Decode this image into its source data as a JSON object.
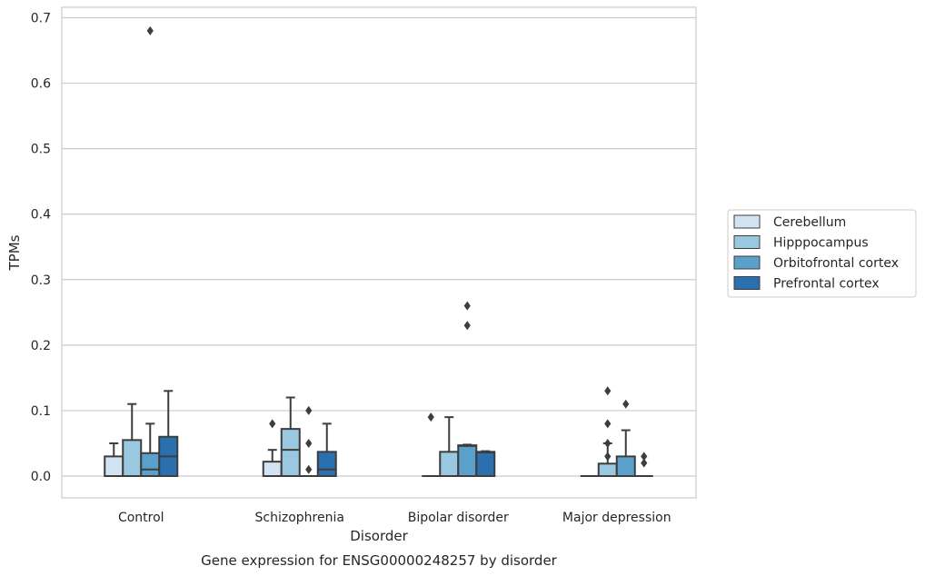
{
  "chart_data": {
    "type": "box",
    "caption": "Gene expression for ENSG00000248257 by disorder",
    "xlabel": "Disorder",
    "ylabel": "TPMs",
    "ylim": [
      -0.034,
      0.72
    ],
    "yticks": [
      0.0,
      0.1,
      0.2,
      0.3,
      0.4,
      0.5,
      0.6,
      0.7
    ],
    "ytick_labels": [
      "0.0",
      "0.1",
      "0.2",
      "0.3",
      "0.4",
      "0.5",
      "0.6",
      "0.7"
    ],
    "grid": "horizontal",
    "legend_position": "right",
    "categories": [
      "Control",
      "Schizophrenia",
      "Bipolar disorder",
      "Major depression"
    ],
    "series": [
      {
        "name": "Cerebellum",
        "color": "#d2e3f3",
        "boxes": [
          {
            "min": 0.0,
            "q1": 0.0,
            "median": 0.0,
            "q3": 0.03,
            "max": 0.05,
            "outliers": []
          },
          {
            "min": 0.0,
            "q1": 0.0,
            "median": 0.0,
            "q3": 0.022,
            "max": 0.04,
            "outliers": [
              0.08
            ]
          },
          {
            "min": 0.0,
            "q1": 0.0,
            "median": 0.0,
            "q3": 0.0,
            "max": 0.0,
            "outliers": [
              0.09
            ]
          },
          {
            "min": 0.0,
            "q1": 0.0,
            "median": 0.0,
            "q3": 0.0,
            "max": 0.0,
            "outliers": []
          }
        ]
      },
      {
        "name": "Hipppocampus",
        "color": "#9ac8e0",
        "boxes": [
          {
            "min": 0.0,
            "q1": 0.0,
            "median": 0.0,
            "q3": 0.055,
            "max": 0.11,
            "outliers": []
          },
          {
            "min": 0.0,
            "q1": 0.0,
            "median": 0.04,
            "q3": 0.072,
            "max": 0.12,
            "outliers": []
          },
          {
            "min": 0.0,
            "q1": 0.0,
            "median": 0.0,
            "q3": 0.037,
            "max": 0.09,
            "outliers": []
          },
          {
            "min": 0.0,
            "q1": 0.0,
            "median": 0.0,
            "q3": 0.019,
            "max": 0.05,
            "outliers": [
              0.03,
              0.05,
              0.08,
              0.13
            ]
          }
        ]
      },
      {
        "name": "Orbitofrontal cortex",
        "color": "#5b9fcb",
        "boxes": [
          {
            "min": 0.0,
            "q1": 0.0,
            "median": 0.01,
            "q3": 0.035,
            "max": 0.08,
            "outliers": [
              0.68
            ]
          },
          {
            "min": 0.0,
            "q1": 0.0,
            "median": 0.0,
            "q3": 0.0,
            "max": 0.0,
            "outliers": [
              0.01,
              0.05,
              0.1
            ]
          },
          {
            "min": 0.0,
            "q1": 0.0,
            "median": 0.046,
            "q3": 0.047,
            "max": 0.048,
            "outliers": [
              0.23,
              0.26
            ]
          },
          {
            "min": 0.0,
            "q1": 0.0,
            "median": 0.0,
            "q3": 0.03,
            "max": 0.07,
            "outliers": [
              0.11
            ]
          }
        ]
      },
      {
        "name": "Prefrontal cortex",
        "color": "#2a6fae",
        "boxes": [
          {
            "min": 0.0,
            "q1": 0.0,
            "median": 0.03,
            "q3": 0.06,
            "max": 0.13,
            "outliers": []
          },
          {
            "min": 0.0,
            "q1": 0.0,
            "median": 0.01,
            "q3": 0.037,
            "max": 0.08,
            "outliers": []
          },
          {
            "min": 0.0,
            "q1": 0.0,
            "median": 0.036,
            "q3": 0.037,
            "max": 0.038,
            "outliers": []
          },
          {
            "min": 0.0,
            "q1": 0.0,
            "median": 0.0,
            "q3": 0.0,
            "max": 0.0,
            "outliers": [
              0.02,
              0.03
            ]
          }
        ]
      }
    ]
  }
}
